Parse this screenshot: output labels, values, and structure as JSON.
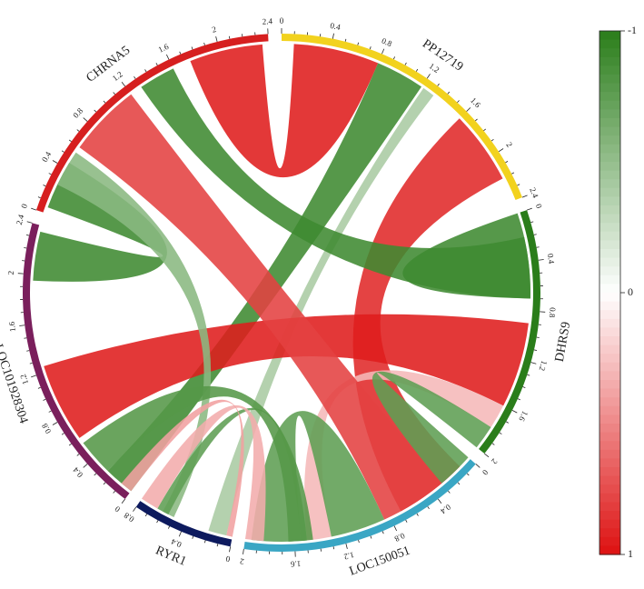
{
  "chart_data": {
    "type": "chord",
    "sectors": [
      {
        "name": "PP12719",
        "start": 0,
        "end": 2.4,
        "color": "#f2d21e",
        "ticks": [
          "0",
          "0.4",
          "0.8",
          "1.2",
          "1.6",
          "2",
          "2.4"
        ]
      },
      {
        "name": "DHRS9",
        "start": 0,
        "end": 2,
        "color": "#2a7d1a",
        "ticks": [
          "0",
          "0.4",
          "0.8",
          "1.2",
          "1.6",
          "2"
        ]
      },
      {
        "name": "LOC150051",
        "start": 0,
        "end": 2,
        "color": "#3aa6c4",
        "ticks": [
          "0",
          "0.4",
          "0.8",
          "1.2",
          "1.6",
          "2"
        ]
      },
      {
        "name": "RYR1",
        "start": 0,
        "end": 0.8,
        "color": "#0d1a5e",
        "ticks": [
          "0",
          "0.4",
          "0.8"
        ]
      },
      {
        "name": "LOC101928304",
        "start": 0,
        "end": 2.4,
        "color": "#7a1f5c",
        "ticks": [
          "0",
          "0.4",
          "0.8",
          "1.2",
          "1.6",
          "2",
          "2.4"
        ]
      },
      {
        "name": "CHRNA5",
        "start": 0,
        "end": 2.4,
        "color": "#d61f1f",
        "ticks": [
          "0",
          "0.4",
          "0.8",
          "1.2",
          "1.6",
          "2",
          "2.4"
        ]
      }
    ],
    "links": [
      {
        "from": "PP12719",
        "from_range": [
          0.1,
          0.8
        ],
        "to": "CHRNA5",
        "to_range": [
          1.75,
          2.35
        ],
        "value": 0.95
      },
      {
        "from": "PP12719",
        "from_range": [
          0.8,
          1.2
        ],
        "to": "LOC101928304",
        "to_range": [
          0.0,
          0.25
        ],
        "value": -0.9
      },
      {
        "from": "PP12719",
        "from_range": [
          1.22,
          1.32
        ],
        "to": "RYR1",
        "to_range": [
          0.05,
          0.2
        ],
        "value": -0.4
      },
      {
        "from": "PP12719",
        "from_range": [
          1.6,
          2.2
        ],
        "to": "LOC150051",
        "to_range": [
          0.1,
          0.7
        ],
        "value": 0.9
      },
      {
        "from": "DHRS9",
        "from_range": [
          0.0,
          0.7
        ],
        "to": "DHRS9",
        "to_range": [
          0.0,
          0.7
        ],
        "value": -0.9
      },
      {
        "from": "DHRS9",
        "from_range": [
          0.2,
          0.7
        ],
        "to": "CHRNA5",
        "to_range": [
          1.3,
          1.6
        ],
        "value": -0.9
      },
      {
        "from": "DHRS9",
        "from_range": [
          0.9,
          1.6
        ],
        "to": "LOC101928304",
        "to_range": [
          0.6,
          1.25
        ],
        "value": 0.95
      },
      {
        "from": "DHRS9",
        "from_range": [
          1.6,
          1.8
        ],
        "to": "LOC150051",
        "to_range": [
          1.3,
          1.5
        ],
        "value": 0.3
      },
      {
        "from": "DHRS9",
        "from_range": [
          1.8,
          2.0
        ],
        "to": "LOC150051",
        "to_range": [
          0.0,
          0.3
        ],
        "value": -0.75
      },
      {
        "from": "CHRNA5",
        "from_range": [
          0.6,
          1.2
        ],
        "to": "LOC150051",
        "to_range": [
          0.3,
          0.85
        ],
        "value": 0.8
      },
      {
        "from": "CHRNA5",
        "from_range": [
          0.05,
          0.45
        ],
        "to": "LOC101928304",
        "to_range": [
          1.95,
          2.35
        ],
        "value": -0.9
      },
      {
        "from": "CHRNA5",
        "from_range": [
          0.25,
          0.55
        ],
        "to": "RYR1",
        "to_range": [
          0.5,
          0.6
        ],
        "value": -0.55
      },
      {
        "from": "LOC150051",
        "from_range": [
          0.85,
          1.3
        ],
        "to": "LOC150051",
        "to_range": [
          1.55,
          1.95
        ],
        "value": -0.75
      },
      {
        "from": "LOC150051",
        "from_range": [
          1.5,
          1.55
        ],
        "to": "RYR1",
        "to_range": [
          0.55,
          0.65
        ],
        "value": -0.75
      },
      {
        "from": "LOC101928304",
        "from_range": [
          0.25,
          0.55
        ],
        "to": "LOC150051",
        "to_range": [
          1.45,
          1.65
        ],
        "value": -0.8
      },
      {
        "from": "RYR1",
        "from_range": [
          0.65,
          0.8
        ],
        "to": "LOC150051",
        "to_range": [
          1.85,
          2.0
        ],
        "value": 0.35
      },
      {
        "from": "RYR1",
        "from_range": [
          0.0,
          0.05
        ],
        "to": "LOC101928304",
        "to_range": [
          0.0,
          0.1
        ],
        "value": 0.4
      }
    ],
    "colorbar": {
      "min": -1,
      "max": 1,
      "labels": [
        "-1",
        "0",
        "1"
      ],
      "low_color": "#2a7d1a",
      "mid_color": "#ffffff",
      "high_color": "#dd1111"
    }
  }
}
